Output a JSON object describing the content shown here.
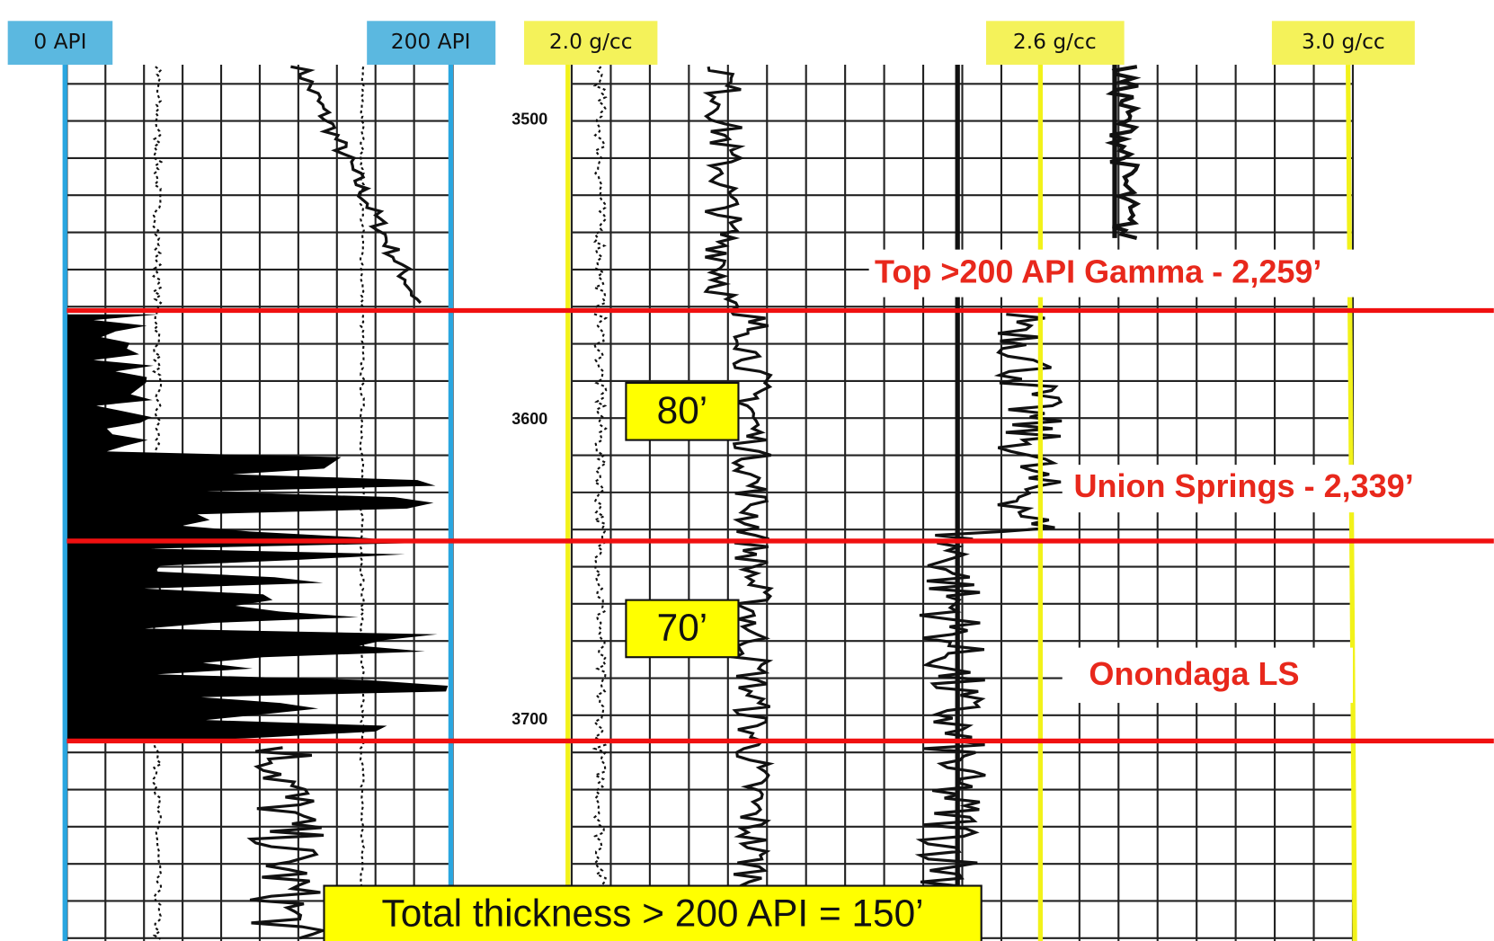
{
  "scale_labels": [
    "0 API",
    "200 API",
    "2.0 g/cc",
    "2.6 g/cc",
    "3.0 g/cc"
  ],
  "depth_labels": [
    "3500",
    "3600",
    "3700"
  ],
  "annotations": {
    "top": "Top >200 API Gamma - 2,259’",
    "union_springs": "Union Springs - 2,339’",
    "onondaga": "Onondaga LS",
    "upper_thickness": "80’",
    "lower_thickness": "70’",
    "total": "Total thickness > 200 API = 150’"
  }
}
